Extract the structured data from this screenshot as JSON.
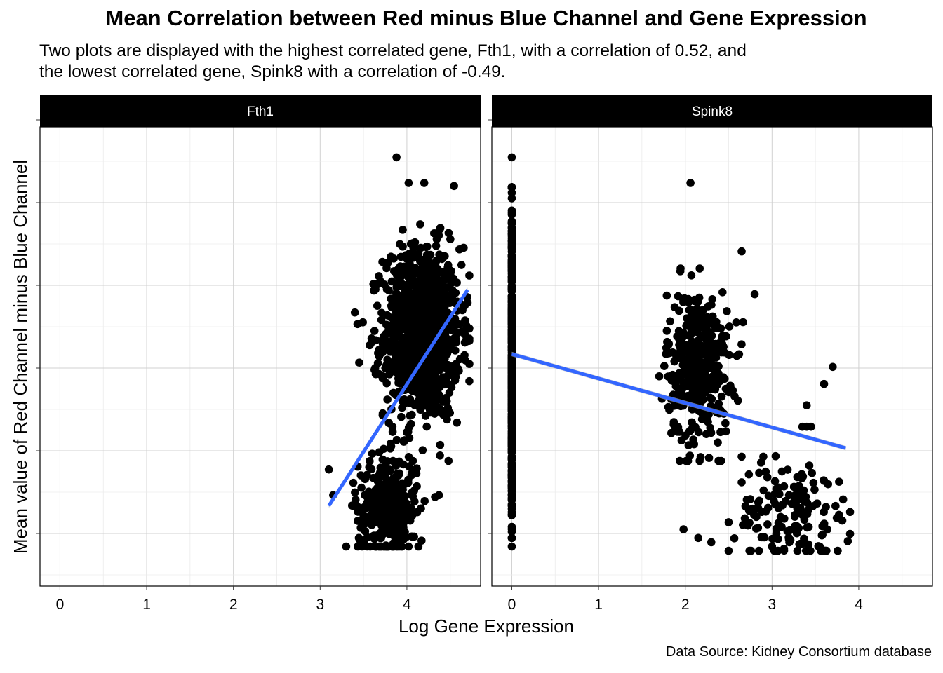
{
  "chart_data": {
    "type": "scatter",
    "title": "Mean Correlation between Red minus Blue Channel and Gene Expression",
    "subtitle": "Two plots are displayed with the highest correlated gene, Fth1, with a correlation of 0.52, and\nthe lowest correlated gene, Spink8 with a correlation of -0.49.",
    "caption": "Data Source: Kidney Consortium database",
    "xlabel": "Log Gene Expression",
    "ylabel": "Mean value of Red Channel minus Blue Channel",
    "x_ticks": [
      "0",
      "1",
      "2",
      "3",
      "4"
    ],
    "xlim": [
      -0.23,
      4.85
    ],
    "ylim": [
      0,
      100
    ],
    "y_tick_labels_shown": false,
    "grid": true,
    "colors": {
      "points": "#000000",
      "fit_line": "#3366FF",
      "confidence_band": "#BBBBBB",
      "strip_background": "#000000",
      "strip_text": "#FFFFFF"
    },
    "panels": [
      {
        "name": "Fth1",
        "correlation": 0.52,
        "fit": {
          "x": [
            3.1,
            4.7
          ],
          "y": [
            14.5,
            65
          ]
        },
        "clusters": [
          {
            "n": 1150,
            "x_mean": 4.18,
            "x_sd": 0.22,
            "y_mean": 55,
            "y_sd": 10,
            "x_min": 3.4,
            "x_max": 4.72,
            "y_min": 25,
            "y_max": 90
          },
          {
            "n": 350,
            "x_mean": 3.78,
            "x_sd": 0.17,
            "y_mean": 14,
            "y_sd": 6,
            "x_min": 3.3,
            "x_max": 4.4,
            "y_min": 5,
            "y_max": 30
          }
        ],
        "outliers": [
          {
            "x": 3.88,
            "y": 96
          },
          {
            "x": 4.02,
            "y": 90
          },
          {
            "x": 4.2,
            "y": 90
          },
          {
            "x": 3.1,
            "y": 23
          },
          {
            "x": 3.15,
            "y": 17
          },
          {
            "x": 4.7,
            "y": 62
          },
          {
            "x": 3.43,
            "y": 57
          },
          {
            "x": 3.45,
            "y": 48
          },
          {
            "x": 4.37,
            "y": 17
          }
        ]
      },
      {
        "name": "Spink8",
        "correlation": -0.49,
        "fit": {
          "x": [
            0,
            3.85
          ],
          "y": [
            50,
            28
          ]
        },
        "clusters": [
          {
            "n": 420,
            "x_mean": 0,
            "x_sd": 0,
            "y_mean": 48,
            "y_sd": 18,
            "x_min": 0,
            "x_max": 0,
            "y_min": 7,
            "y_max": 89
          },
          {
            "n": 420,
            "x_mean": 2.15,
            "x_sd": 0.18,
            "y_mean": 47,
            "y_sd": 9,
            "x_min": 1.7,
            "x_max": 2.7,
            "y_min": 25,
            "y_max": 70
          },
          {
            "n": 150,
            "x_mean": 3.25,
            "x_sd": 0.33,
            "y_mean": 13,
            "y_sd": 6,
            "x_min": 2.5,
            "x_max": 3.9,
            "y_min": 4,
            "y_max": 27
          }
        ],
        "outliers": [
          {
            "x": 0,
            "y": 96
          },
          {
            "x": 0,
            "y": 5
          },
          {
            "x": 2.06,
            "y": 90
          },
          {
            "x": 2.65,
            "y": 74
          },
          {
            "x": 2.8,
            "y": 64
          },
          {
            "x": 3.7,
            "y": 47
          },
          {
            "x": 3.6,
            "y": 43
          },
          {
            "x": 3.4,
            "y": 38
          },
          {
            "x": 3.4,
            "y": 33
          },
          {
            "x": 3.35,
            "y": 33
          },
          {
            "x": 3.45,
            "y": 33
          },
          {
            "x": 2.65,
            "y": 26
          },
          {
            "x": 2.9,
            "y": 26
          },
          {
            "x": 2.15,
            "y": 7
          },
          {
            "x": 2.3,
            "y": 6
          },
          {
            "x": 1.98,
            "y": 9
          },
          {
            "x": 3.0,
            "y": 5
          },
          {
            "x": 3.55,
            "y": 5
          },
          {
            "x": 3.2,
            "y": 6
          },
          {
            "x": 3.82,
            "y": 16
          }
        ]
      }
    ]
  }
}
